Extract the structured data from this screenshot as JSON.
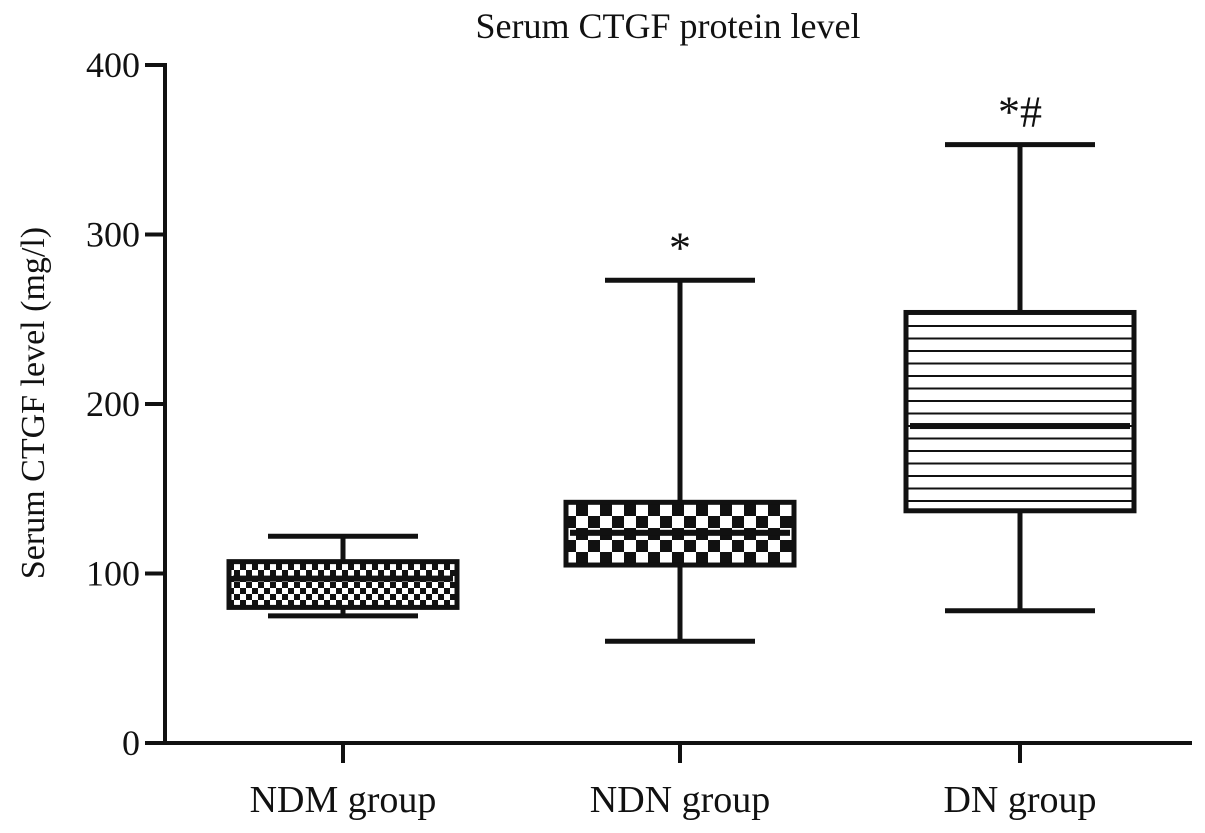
{
  "chart_data": {
    "type": "box",
    "title": "Serum CTGF protein level",
    "xlabel": "",
    "ylabel": "Serum CTGF level (mg/l)",
    "ylim": [
      0,
      400
    ],
    "yticks": [
      0,
      100,
      200,
      300,
      400
    ],
    "grid": false,
    "legend": "none",
    "categories": [
      "NDM group",
      "NDN group",
      "DN group"
    ],
    "boxes": [
      {
        "category": "NDM group",
        "min": 75,
        "q1": 80,
        "median": 97,
        "q3": 107,
        "max": 122,
        "annotation": "",
        "fill": "checker-fine"
      },
      {
        "category": "NDN group",
        "min": 60,
        "q1": 105,
        "median": 124,
        "q3": 142,
        "max": 273,
        "annotation": "*",
        "fill": "checker-coarse"
      },
      {
        "category": "DN group",
        "min": 78,
        "q1": 137,
        "median": 187,
        "q3": 254,
        "max": 353,
        "annotation": "*#",
        "fill": "horizontal-lines"
      }
    ]
  }
}
